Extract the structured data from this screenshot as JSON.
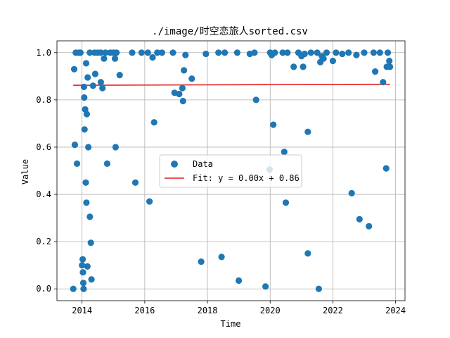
{
  "chart_data": {
    "type": "scatter",
    "title": "./image/时空恋旅人sorted.csv",
    "xlabel": "Time",
    "ylabel": "Value",
    "xlim": [
      2013.2,
      2024.3
    ],
    "ylim": [
      -0.05,
      1.05
    ],
    "xticks": [
      2014,
      2016,
      2018,
      2020,
      2022,
      2024
    ],
    "yticks": [
      0.0,
      0.2,
      0.4,
      0.6,
      0.8,
      1.0
    ],
    "xtick_labels": [
      "2014",
      "2016",
      "2018",
      "2020",
      "2022",
      "2024"
    ],
    "ytick_labels": [
      "0.0",
      "0.2",
      "0.4",
      "0.6",
      "0.8",
      "1.0"
    ],
    "grid": true,
    "legend_position": "center",
    "colors": {
      "scatter": "#1f77b4",
      "fit": "#e41a1c",
      "grid": "#b0b0b0"
    },
    "series": [
      {
        "name": "Data",
        "kind": "scatter",
        "points": [
          [
            2013.72,
            0.0
          ],
          [
            2013.75,
            0.93
          ],
          [
            2013.77,
            0.61
          ],
          [
            2013.8,
            1.0
          ],
          [
            2013.84,
            0.53
          ],
          [
            2013.9,
            1.0
          ],
          [
            2013.95,
            1.0
          ],
          [
            2014.0,
            0.1
          ],
          [
            2014.02,
            0.125
          ],
          [
            2014.03,
            0.07
          ],
          [
            2014.04,
            0.025
          ],
          [
            2014.05,
            0.0
          ],
          [
            2014.06,
            0.855
          ],
          [
            2014.07,
            0.81
          ],
          [
            2014.08,
            0.675
          ],
          [
            2014.1,
            0.76
          ],
          [
            2014.12,
            0.45
          ],
          [
            2014.13,
            0.955
          ],
          [
            2014.14,
            0.365
          ],
          [
            2014.15,
            0.74
          ],
          [
            2014.17,
            0.095
          ],
          [
            2014.18,
            0.895
          ],
          [
            2014.2,
            0.6
          ],
          [
            2014.25,
            0.305
          ],
          [
            2014.28,
            0.195
          ],
          [
            2014.3,
            0.04
          ],
          [
            2014.35,
            0.86
          ],
          [
            2014.42,
            0.91
          ],
          [
            2014.6,
            0.875
          ],
          [
            2014.65,
            0.85
          ],
          [
            2014.7,
            0.975
          ],
          [
            2014.8,
            0.53
          ],
          [
            2015.05,
            0.975
          ],
          [
            2015.07,
            0.6
          ],
          [
            2015.2,
            0.905
          ],
          [
            2014.25,
            1.0
          ],
          [
            2014.4,
            1.0
          ],
          [
            2014.5,
            1.0
          ],
          [
            2014.6,
            1.0
          ],
          [
            2014.75,
            1.0
          ],
          [
            2014.9,
            1.0
          ],
          [
            2015.0,
            1.0
          ],
          [
            2015.1,
            1.0
          ],
          [
            2015.6,
            1.0
          ],
          [
            2015.7,
            0.45
          ],
          [
            2015.9,
            1.0
          ],
          [
            2016.1,
            1.0
          ],
          [
            2016.15,
            0.37
          ],
          [
            2016.25,
            0.98
          ],
          [
            2016.3,
            0.705
          ],
          [
            2016.4,
            1.0
          ],
          [
            2016.55,
            1.0
          ],
          [
            2016.9,
            1.0
          ],
          [
            2016.95,
            0.83
          ],
          [
            2017.1,
            0.825
          ],
          [
            2017.2,
            0.85
          ],
          [
            2017.22,
            0.795
          ],
          [
            2017.25,
            0.925
          ],
          [
            2017.3,
            0.99
          ],
          [
            2017.5,
            0.89
          ],
          [
            2017.8,
            0.115
          ],
          [
            2017.95,
            0.995
          ],
          [
            2018.35,
            1.0
          ],
          [
            2018.45,
            0.135
          ],
          [
            2018.55,
            1.0
          ],
          [
            2018.95,
            1.0
          ],
          [
            2019.0,
            0.035
          ],
          [
            2019.35,
            0.995
          ],
          [
            2019.5,
            1.0
          ],
          [
            2019.55,
            0.8
          ],
          [
            2019.85,
            0.01
          ],
          [
            2019.98,
            0.505
          ],
          [
            2020.0,
            1.0
          ],
          [
            2020.05,
            0.99
          ],
          [
            2020.1,
            0.695
          ],
          [
            2020.15,
            1.0
          ],
          [
            2020.4,
            1.0
          ],
          [
            2020.45,
            0.58
          ],
          [
            2020.5,
            0.365
          ],
          [
            2020.55,
            1.0
          ],
          [
            2020.75,
            0.94
          ],
          [
            2020.9,
            1.0
          ],
          [
            2021.0,
            0.985
          ],
          [
            2021.05,
            0.94
          ],
          [
            2021.1,
            0.995
          ],
          [
            2021.2,
            0.665
          ],
          [
            2021.2,
            0.15
          ],
          [
            2021.3,
            1.0
          ],
          [
            2021.5,
            1.0
          ],
          [
            2021.55,
            0.0
          ],
          [
            2021.6,
            0.96
          ],
          [
            2021.65,
            0.985
          ],
          [
            2021.7,
            0.975
          ],
          [
            2021.8,
            1.0
          ],
          [
            2022.0,
            0.965
          ],
          [
            2022.1,
            1.0
          ],
          [
            2022.3,
            0.995
          ],
          [
            2022.5,
            1.0
          ],
          [
            2022.6,
            0.405
          ],
          [
            2022.75,
            0.99
          ],
          [
            2022.85,
            0.295
          ],
          [
            2023.0,
            1.0
          ],
          [
            2023.15,
            0.265
          ],
          [
            2023.3,
            1.0
          ],
          [
            2023.35,
            0.92
          ],
          [
            2023.5,
            1.0
          ],
          [
            2023.6,
            0.875
          ],
          [
            2023.7,
            0.51
          ],
          [
            2023.72,
            0.94
          ],
          [
            2023.75,
            1.0
          ],
          [
            2023.8,
            0.965
          ],
          [
            2023.82,
            0.94
          ]
        ]
      },
      {
        "name": "Fit: y = 0.00x + 0.86",
        "kind": "line",
        "points": [
          [
            2013.72,
            0.862
          ],
          [
            2023.82,
            0.866
          ]
        ]
      }
    ]
  }
}
